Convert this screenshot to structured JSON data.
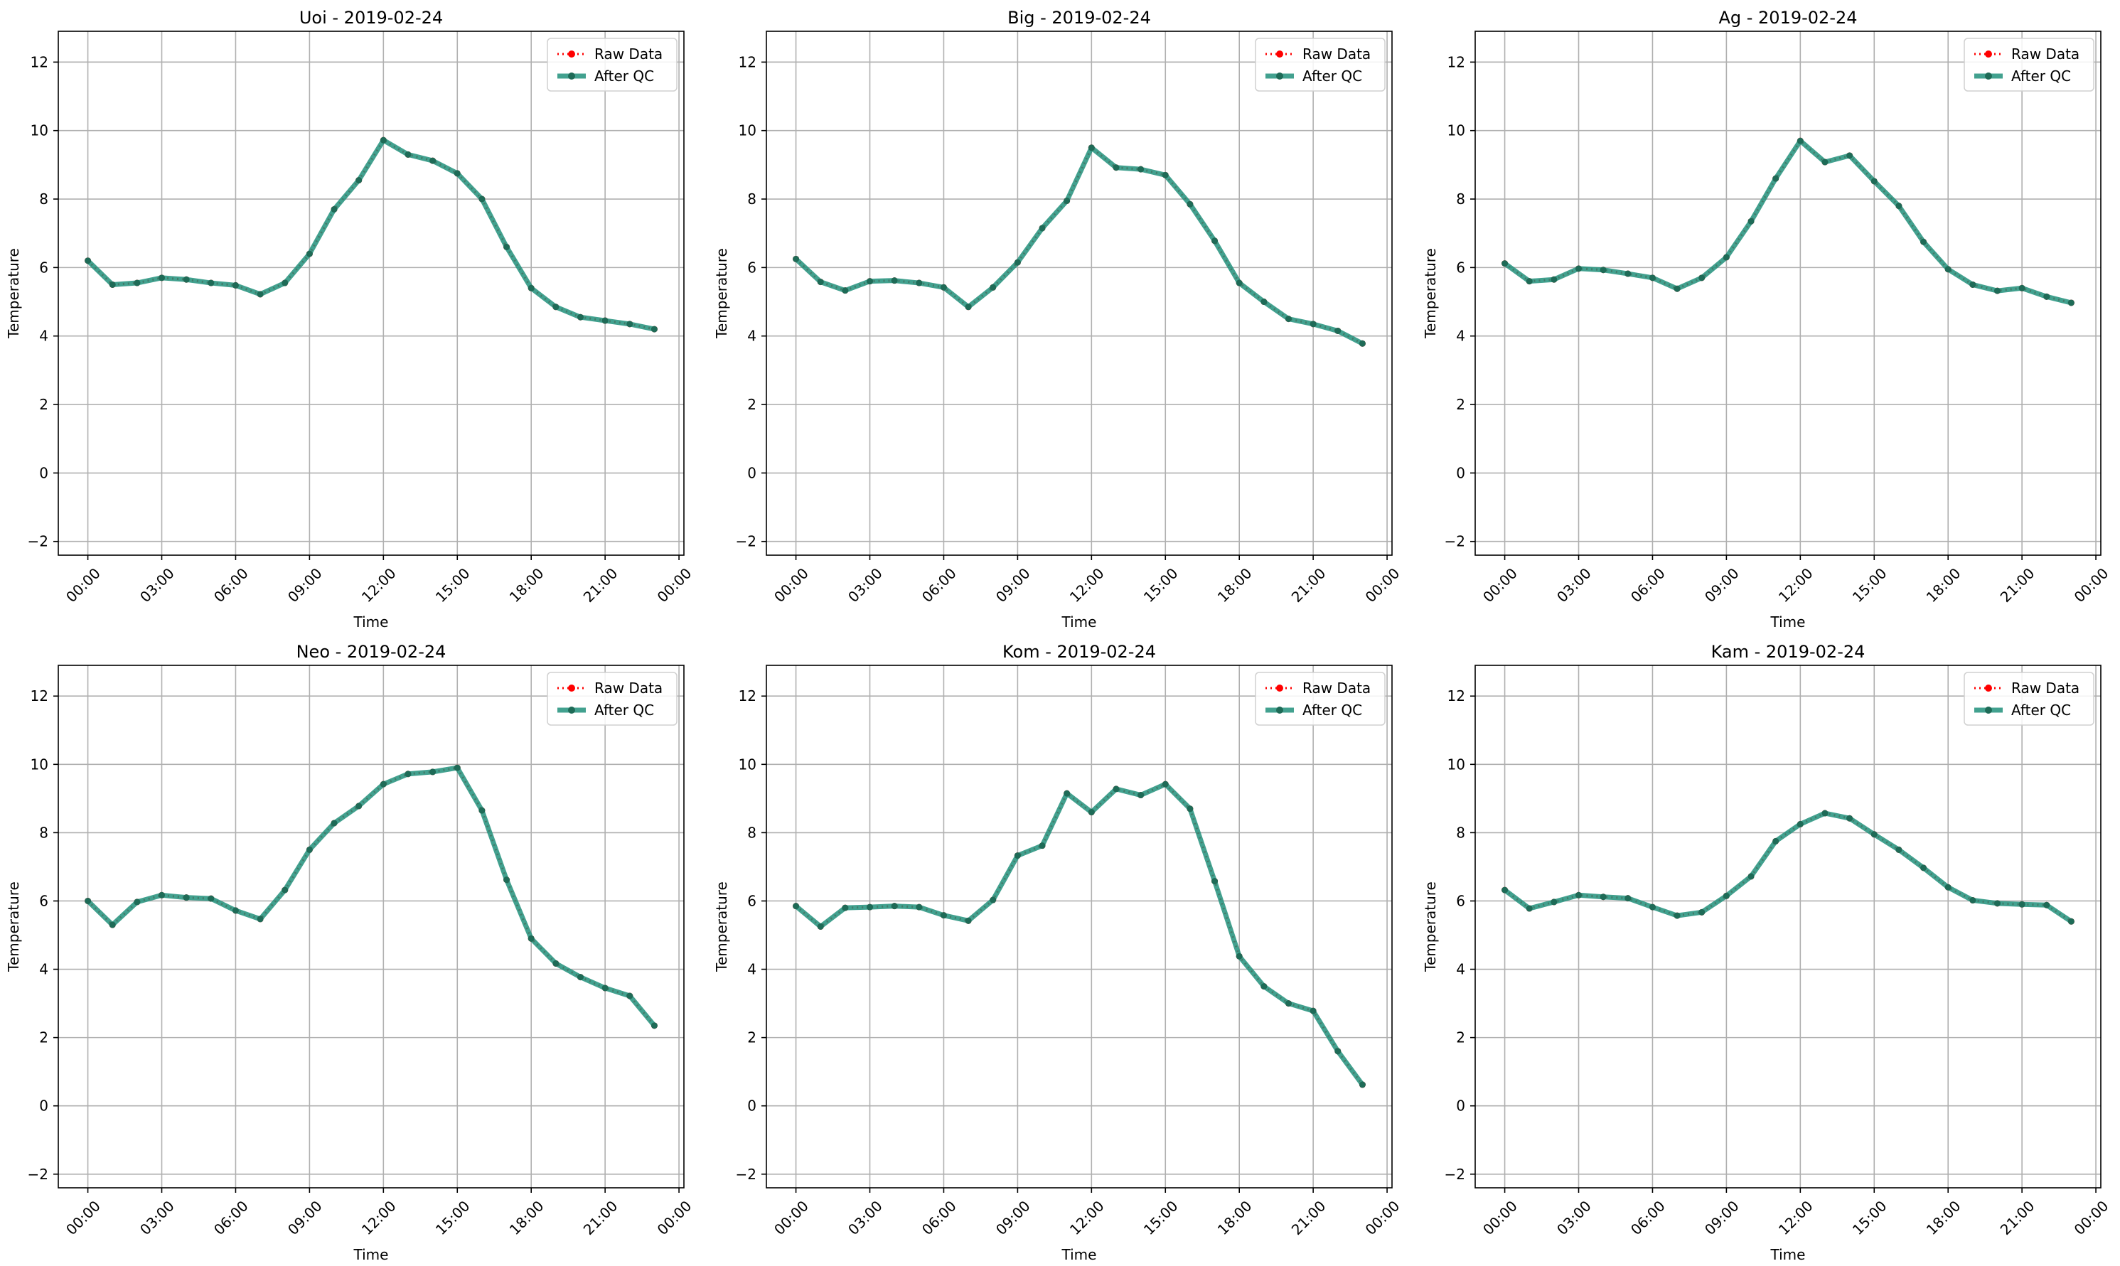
{
  "figure": {
    "style": {
      "raw_color": "#ff0000",
      "qc_color": "#21907b",
      "qc_marker_color": "#1e6b57",
      "grid_color": "#b0b0b0"
    }
  },
  "chart_data": [
    {
      "type": "line",
      "title": "Uoi - 2019-02-24",
      "xlabel": "Time",
      "ylabel": "Temperature",
      "x": [
        "00:00",
        "01:00",
        "02:00",
        "03:00",
        "04:00",
        "05:00",
        "06:00",
        "07:00",
        "08:00",
        "09:00",
        "10:00",
        "11:00",
        "12:00",
        "13:00",
        "14:00",
        "15:00",
        "16:00",
        "17:00",
        "18:00",
        "19:00",
        "20:00",
        "21:00",
        "22:00",
        "23:00"
      ],
      "x_ticks": [
        "00:00",
        "03:00",
        "06:00",
        "09:00",
        "12:00",
        "15:00",
        "18:00",
        "21:00",
        "00:00"
      ],
      "y_ticks": [
        -2,
        0,
        2,
        4,
        6,
        8,
        10,
        12
      ],
      "ylim": [
        -2.4,
        12.9
      ],
      "xlim": [
        "2019-02-24 23:00 (prev day) -0:40",
        "2019-02-25 00:10"
      ],
      "grid": true,
      "legend": "top-right",
      "series": [
        {
          "name": "Raw Data",
          "values": [
            6.2,
            5.5,
            5.55,
            5.7,
            5.65,
            5.55,
            5.48,
            5.22,
            5.55,
            6.4,
            7.7,
            8.55,
            9.72,
            9.3,
            9.12,
            8.75,
            8.0,
            6.6,
            5.4,
            4.85,
            4.55,
            4.45,
            4.35,
            4.2
          ]
        },
        {
          "name": "After QC",
          "values": [
            6.2,
            5.5,
            5.55,
            5.7,
            5.65,
            5.55,
            5.48,
            5.22,
            5.55,
            6.4,
            7.7,
            8.55,
            9.72,
            9.3,
            9.12,
            8.75,
            8.0,
            6.6,
            5.4,
            4.85,
            4.55,
            4.45,
            4.35,
            4.2
          ]
        }
      ]
    },
    {
      "type": "line",
      "title": "Big - 2019-02-24",
      "xlabel": "Time",
      "ylabel": "Temperature",
      "x": [
        "00:00",
        "01:00",
        "02:00",
        "03:00",
        "04:00",
        "05:00",
        "06:00",
        "07:00",
        "08:00",
        "09:00",
        "10:00",
        "11:00",
        "12:00",
        "13:00",
        "14:00",
        "15:00",
        "16:00",
        "17:00",
        "18:00",
        "19:00",
        "20:00",
        "21:00",
        "22:00",
        "23:00"
      ],
      "x_ticks": [
        "00:00",
        "03:00",
        "06:00",
        "09:00",
        "12:00",
        "15:00",
        "18:00",
        "21:00",
        "00:00"
      ],
      "y_ticks": [
        -2,
        0,
        2,
        4,
        6,
        8,
        10,
        12
      ],
      "ylim": [
        -2.4,
        12.9
      ],
      "grid": true,
      "legend": "top-right",
      "series": [
        {
          "name": "Raw Data",
          "values": [
            6.25,
            5.58,
            5.33,
            5.6,
            5.62,
            5.55,
            5.42,
            4.85,
            5.42,
            6.15,
            7.15,
            7.95,
            9.5,
            8.92,
            8.87,
            8.7,
            7.85,
            6.78,
            5.55,
            5.0,
            4.5,
            4.35,
            4.15,
            3.78
          ]
        },
        {
          "name": "After QC",
          "values": [
            6.25,
            5.58,
            5.33,
            5.6,
            5.62,
            5.55,
            5.42,
            4.85,
            5.42,
            6.15,
            7.15,
            7.95,
            9.5,
            8.92,
            8.87,
            8.7,
            7.85,
            6.78,
            5.55,
            5.0,
            4.5,
            4.35,
            4.15,
            3.78
          ]
        }
      ]
    },
    {
      "type": "line",
      "title": "Ag - 2019-02-24",
      "xlabel": "Time",
      "ylabel": "Temperature",
      "x": [
        "00:00",
        "01:00",
        "02:00",
        "03:00",
        "04:00",
        "05:00",
        "06:00",
        "07:00",
        "08:00",
        "09:00",
        "10:00",
        "11:00",
        "12:00",
        "13:00",
        "14:00",
        "15:00",
        "16:00",
        "17:00",
        "18:00",
        "19:00",
        "20:00",
        "21:00",
        "22:00",
        "23:00"
      ],
      "x_ticks": [
        "00:00",
        "03:00",
        "06:00",
        "09:00",
        "12:00",
        "15:00",
        "18:00",
        "21:00",
        "00:00"
      ],
      "y_ticks": [
        -2,
        0,
        2,
        4,
        6,
        8,
        10,
        12
      ],
      "ylim": [
        -2.4,
        12.9
      ],
      "grid": true,
      "legend": "top-right",
      "series": [
        {
          "name": "Raw Data",
          "values": [
            6.12,
            5.6,
            5.65,
            5.97,
            5.93,
            5.82,
            5.7,
            5.38,
            5.7,
            6.3,
            7.35,
            8.6,
            9.7,
            9.08,
            9.27,
            8.52,
            7.8,
            6.75,
            5.95,
            5.5,
            5.32,
            5.4,
            5.15,
            4.97
          ]
        },
        {
          "name": "After QC",
          "values": [
            6.12,
            5.6,
            5.65,
            5.97,
            5.93,
            5.82,
            5.7,
            5.38,
            5.7,
            6.3,
            7.35,
            8.6,
            9.7,
            9.08,
            9.27,
            8.52,
            7.8,
            6.75,
            5.95,
            5.5,
            5.32,
            5.4,
            5.15,
            4.97
          ]
        }
      ]
    },
    {
      "type": "line",
      "title": "Neo - 2019-02-24",
      "xlabel": "Time",
      "ylabel": "Temperature",
      "x": [
        "00:00",
        "01:00",
        "02:00",
        "03:00",
        "04:00",
        "05:00",
        "06:00",
        "07:00",
        "08:00",
        "09:00",
        "10:00",
        "11:00",
        "12:00",
        "13:00",
        "14:00",
        "15:00",
        "16:00",
        "17:00",
        "18:00",
        "19:00",
        "20:00",
        "21:00",
        "22:00",
        "23:00"
      ],
      "x_ticks": [
        "00:00",
        "03:00",
        "06:00",
        "09:00",
        "12:00",
        "15:00",
        "18:00",
        "21:00",
        "00:00"
      ],
      "y_ticks": [
        -2,
        0,
        2,
        4,
        6,
        8,
        10,
        12
      ],
      "ylim": [
        -2.4,
        12.9
      ],
      "grid": true,
      "legend": "top-right",
      "series": [
        {
          "name": "Raw Data",
          "values": [
            6.0,
            5.3,
            5.97,
            6.17,
            6.1,
            6.07,
            5.72,
            5.47,
            6.32,
            7.5,
            8.28,
            8.78,
            9.42,
            9.72,
            9.78,
            9.9,
            8.65,
            6.62,
            4.9,
            4.17,
            3.77,
            3.45,
            3.22,
            2.35
          ]
        },
        {
          "name": "After QC",
          "values": [
            6.0,
            5.3,
            5.97,
            6.17,
            6.1,
            6.07,
            5.72,
            5.47,
            6.32,
            7.5,
            8.28,
            8.78,
            9.42,
            9.72,
            9.78,
            9.9,
            8.65,
            6.62,
            4.9,
            4.17,
            3.77,
            3.45,
            3.22,
            2.35
          ]
        }
      ]
    },
    {
      "type": "line",
      "title": "Kom - 2019-02-24",
      "xlabel": "Time",
      "ylabel": "Temperature",
      "x": [
        "00:00",
        "01:00",
        "02:00",
        "03:00",
        "04:00",
        "05:00",
        "06:00",
        "07:00",
        "08:00",
        "09:00",
        "10:00",
        "11:00",
        "12:00",
        "13:00",
        "14:00",
        "15:00",
        "16:00",
        "17:00",
        "18:00",
        "19:00",
        "20:00",
        "21:00",
        "22:00",
        "23:00"
      ],
      "x_ticks": [
        "00:00",
        "03:00",
        "06:00",
        "09:00",
        "12:00",
        "15:00",
        "18:00",
        "21:00",
        "00:00"
      ],
      "y_ticks": [
        -2,
        0,
        2,
        4,
        6,
        8,
        10,
        12
      ],
      "ylim": [
        -2.4,
        12.9
      ],
      "grid": true,
      "legend": "top-right",
      "series": [
        {
          "name": "Raw Data",
          "values": [
            5.85,
            5.25,
            5.8,
            5.82,
            5.85,
            5.82,
            5.58,
            5.42,
            6.03,
            7.33,
            7.62,
            9.15,
            8.6,
            9.28,
            9.1,
            9.42,
            8.7,
            6.58,
            4.38,
            3.5,
            3.0,
            2.78,
            1.6,
            0.62
          ]
        },
        {
          "name": "After QC",
          "values": [
            5.85,
            5.25,
            5.8,
            5.82,
            5.85,
            5.82,
            5.58,
            5.42,
            6.03,
            7.33,
            7.62,
            9.15,
            8.6,
            9.28,
            9.1,
            9.42,
            8.7,
            6.58,
            4.38,
            3.5,
            3.0,
            2.78,
            1.6,
            0.62
          ]
        }
      ]
    },
    {
      "type": "line",
      "title": "Kam - 2019-02-24",
      "xlabel": "Time",
      "ylabel": "Temperature",
      "x": [
        "00:00",
        "01:00",
        "02:00",
        "03:00",
        "04:00",
        "05:00",
        "06:00",
        "07:00",
        "08:00",
        "09:00",
        "10:00",
        "11:00",
        "12:00",
        "13:00",
        "14:00",
        "15:00",
        "16:00",
        "17:00",
        "18:00",
        "19:00",
        "20:00",
        "21:00",
        "22:00",
        "23:00"
      ],
      "x_ticks": [
        "00:00",
        "03:00",
        "06:00",
        "09:00",
        "12:00",
        "15:00",
        "18:00",
        "21:00",
        "00:00"
      ],
      "y_ticks": [
        -2,
        0,
        2,
        4,
        6,
        8,
        10,
        12
      ],
      "ylim": [
        -2.4,
        12.9
      ],
      "grid": true,
      "legend": "top-right",
      "series": [
        {
          "name": "Raw Data",
          "values": [
            6.32,
            5.78,
            5.97,
            6.17,
            6.12,
            6.08,
            5.82,
            5.57,
            5.67,
            6.15,
            6.72,
            7.75,
            8.25,
            8.57,
            8.42,
            7.95,
            7.5,
            6.97,
            6.4,
            6.02,
            5.93,
            5.9,
            5.88,
            5.4
          ]
        },
        {
          "name": "After QC",
          "values": [
            6.32,
            5.78,
            5.97,
            6.17,
            6.12,
            6.08,
            5.82,
            5.57,
            5.67,
            6.15,
            6.72,
            7.75,
            8.25,
            8.57,
            8.42,
            7.95,
            7.5,
            6.97,
            6.4,
            6.02,
            5.93,
            5.9,
            5.88,
            5.4
          ]
        }
      ]
    }
  ]
}
